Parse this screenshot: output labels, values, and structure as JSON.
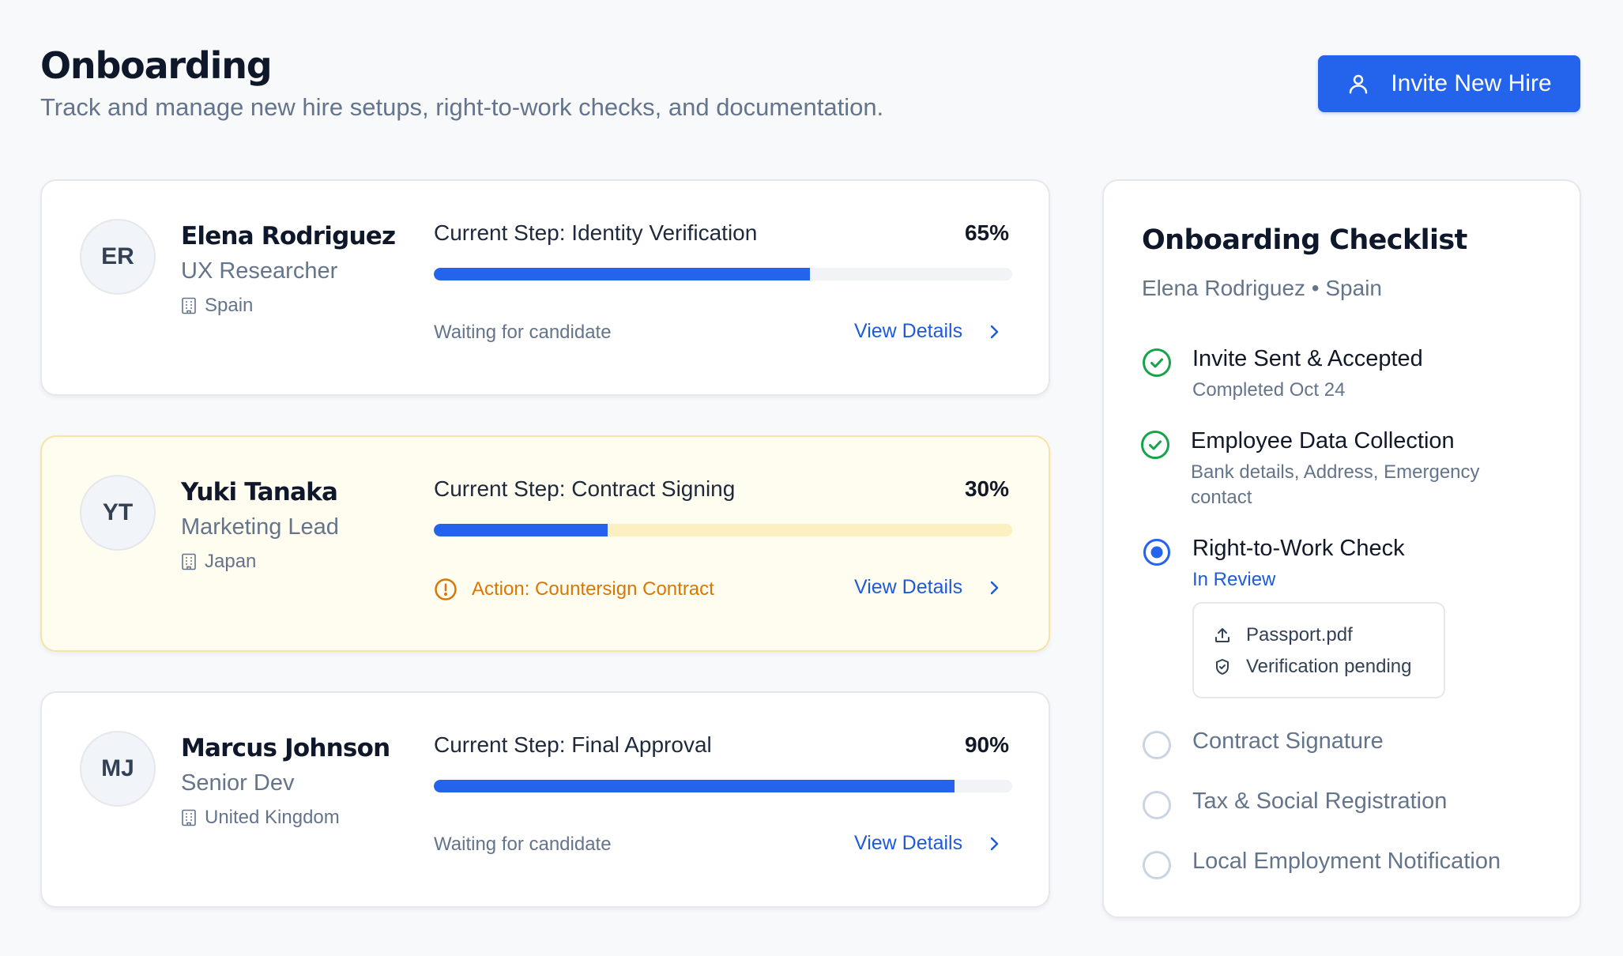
{
  "header": {
    "title": "Onboarding",
    "subtitle": "Track and manage new hire setups, right-to-work checks, and documentation.",
    "invite_button": "Invite New Hire",
    "invite_icon": "user-icon"
  },
  "colors": {
    "primary": "#2463eb",
    "success": "#16a34a",
    "warning": "#d97706",
    "attention_bg": "#fffcf0"
  },
  "hires": [
    {
      "initials": "ER",
      "name": "Elena Rodriguez",
      "role": "UX Researcher",
      "location": "Spain",
      "step": "Current Step: Identity Verification",
      "percent_label": "65%",
      "progress": 65,
      "status": "Waiting for candidate",
      "status_type": "normal",
      "action": "View Details"
    },
    {
      "initials": "YT",
      "name": "Yuki Tanaka",
      "role": "Marketing Lead",
      "location": "Japan",
      "step": "Current Step: Contract Signing",
      "percent_label": "30%",
      "progress": 30,
      "status": "Action: Countersign Contract",
      "status_type": "warning",
      "action": "View Details"
    },
    {
      "initials": "MJ",
      "name": "Marcus Johnson",
      "role": "Senior Dev",
      "location": "United Kingdom",
      "step": "Current Step: Final Approval",
      "percent_label": "90%",
      "progress": 90,
      "status": "Waiting for candidate",
      "status_type": "normal",
      "action": "View Details"
    }
  ],
  "checklist": {
    "title": "Onboarding Checklist",
    "subtitle": "Elena Rodriguez • Spain",
    "items": [
      {
        "label": "Invite Sent & Accepted",
        "sub": "Completed Oct 24",
        "state": "done"
      },
      {
        "label": "Employee Data Collection",
        "sub": "Bank details, Address, Emergency contact",
        "state": "done"
      },
      {
        "label": "Right-to-Work Check",
        "sub": "In Review",
        "state": "active"
      },
      {
        "label": "Contract Signature",
        "sub": "",
        "state": "pending"
      },
      {
        "label": "Tax & Social Registration",
        "sub": "",
        "state": "pending"
      },
      {
        "label": "Local Employment Notification",
        "sub": "",
        "state": "pending"
      }
    ],
    "document": {
      "file": "Passport.pdf",
      "status": "Verification pending"
    }
  }
}
